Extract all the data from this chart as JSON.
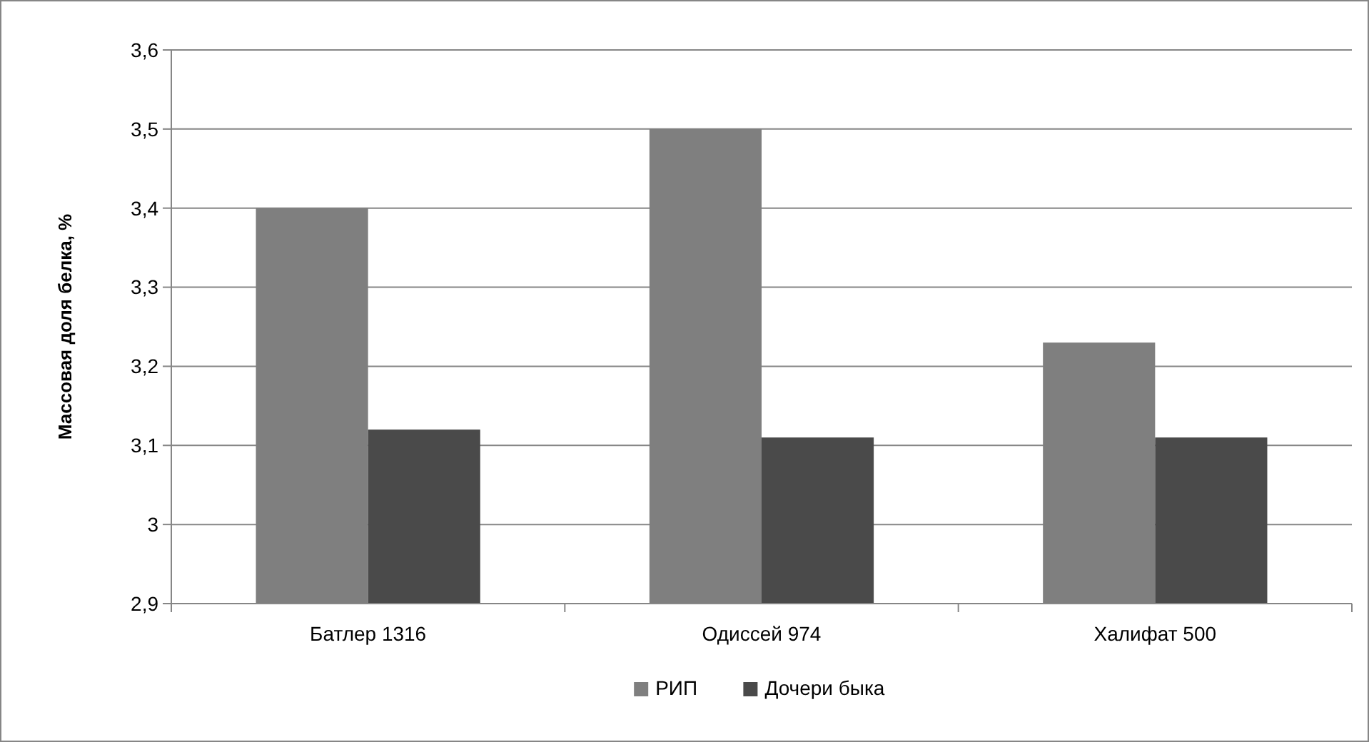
{
  "chart_data": {
    "type": "bar",
    "ylabel": "Массовая доля белка, %",
    "categories": [
      "Батлер 1316",
      "Одиссей 974",
      "Халифат 500"
    ],
    "series": [
      {
        "name": "РИП",
        "color": "#7f7f7f",
        "values": [
          3.4,
          3.5,
          3.23
        ]
      },
      {
        "name": "Дочери быка",
        "color": "#4a4a4a",
        "values": [
          3.12,
          3.11,
          3.11
        ]
      }
    ],
    "ylim": [
      2.9,
      3.6
    ],
    "yticks": [
      {
        "value": 2.9,
        "label": "2,9"
      },
      3,
      {
        "value": 3.1,
        "label": "3,1"
      },
      {
        "value": 3.2,
        "label": "3,2"
      },
      {
        "value": 3.3,
        "label": "3,3"
      },
      {
        "value": 3.4,
        "label": "3,4"
      },
      {
        "value": 3.5,
        "label": "3,5"
      },
      {
        "value": 3.6,
        "label": "3,6"
      }
    ],
    "grid": "y",
    "legend": "bottom"
  }
}
